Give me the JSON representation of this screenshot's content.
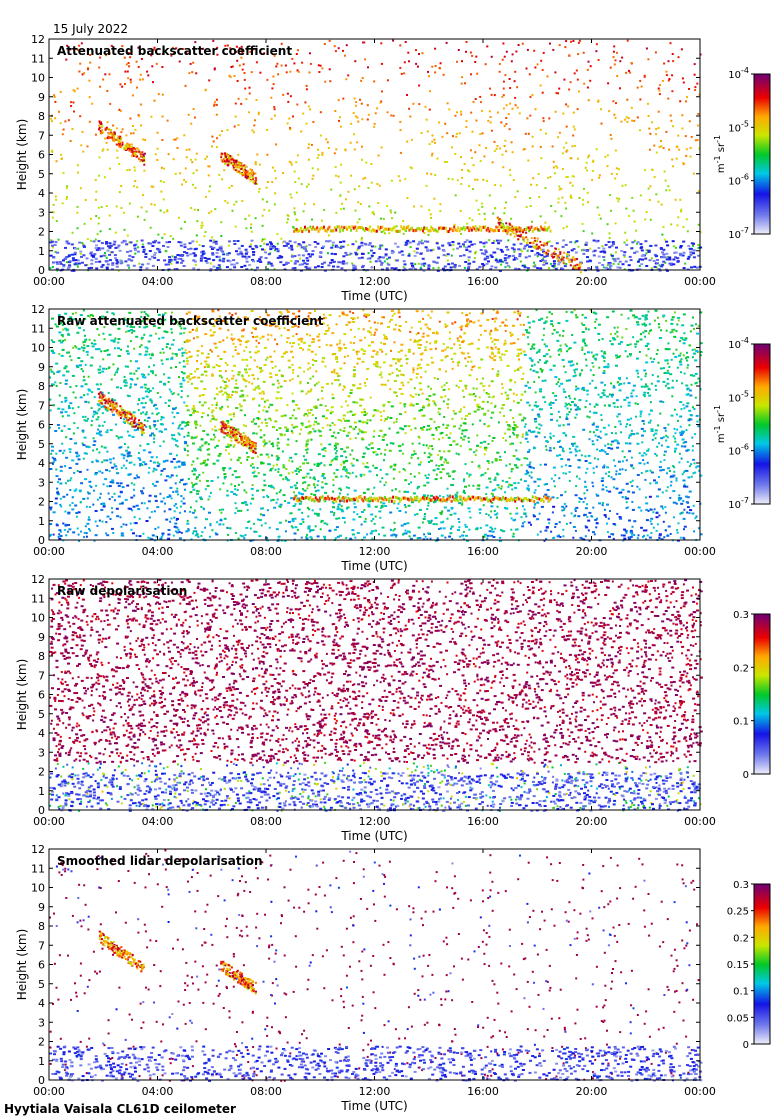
{
  "date_label": "15 July 2022",
  "footer_label": "Hyytiala Vaisala CL61D ceilometer",
  "chart_data": [
    {
      "type": "heatmap",
      "title": "Attenuated backscatter coefficient",
      "xlabel": "Time (UTC)",
      "ylabel": "Height (km)",
      "x_ticks": [
        "00:00",
        "04:00",
        "08:00",
        "12:00",
        "16:00",
        "20:00",
        "00:00"
      ],
      "xlim_hours": [
        0,
        24
      ],
      "y_ticks": [
        0,
        1,
        2,
        3,
        4,
        5,
        6,
        7,
        8,
        9,
        10,
        11,
        12
      ],
      "ylim": [
        0,
        12
      ],
      "colorbar": {
        "scale": "log",
        "range": [
          1e-07,
          0.0001
        ],
        "ticks": [
          "10^-7",
          "10^-6",
          "10^-5",
          "10^-4"
        ],
        "unit": "m^-1 sr^-1"
      },
      "colormap": "rainbow",
      "noise_level": 0.55,
      "features": [
        {
          "kind": "boundary_layer",
          "height_km": [
            0,
            1.6
          ]
        },
        {
          "kind": "cloud_base",
          "from_h": 9.0,
          "to_h": 18.5,
          "height_km": 2.2
        },
        {
          "kind": "cloud",
          "from_h": 1.8,
          "to_h": 3.5,
          "height_km": [
            5.8,
            7.5
          ]
        },
        {
          "kind": "cloud",
          "from_h": 6.3,
          "to_h": 7.6,
          "height_km": [
            4.8,
            6.0
          ]
        },
        {
          "kind": "cloud",
          "from_h": 16.5,
          "to_h": 19.6,
          "height_km": [
            0.2,
            2.5
          ]
        }
      ]
    },
    {
      "type": "heatmap",
      "title": "Raw attenuated backscatter coefficient",
      "xlabel": "Time (UTC)",
      "ylabel": "Height (km)",
      "x_ticks": [
        "00:00",
        "04:00",
        "08:00",
        "12:00",
        "16:00",
        "20:00",
        "00:00"
      ],
      "xlim_hours": [
        0,
        24
      ],
      "y_ticks": [
        0,
        1,
        2,
        3,
        4,
        5,
        6,
        7,
        8,
        9,
        10,
        11,
        12
      ],
      "ylim": [
        0,
        12
      ],
      "colorbar": {
        "scale": "log",
        "range": [
          1e-07,
          0.0001
        ],
        "ticks": [
          "10^-7",
          "10^-6",
          "10^-5",
          "10^-4"
        ],
        "unit": "m^-1 sr^-1"
      },
      "colormap": "rainbow",
      "noise_level": 1.0,
      "features": [
        {
          "kind": "daytime_noise",
          "from_h": 5.0,
          "to_h": 17.5
        },
        {
          "kind": "cloud_base",
          "from_h": 9.0,
          "to_h": 18.5,
          "height_km": 2.2
        },
        {
          "kind": "cloud",
          "from_h": 1.8,
          "to_h": 3.5,
          "height_km": [
            5.8,
            7.5
          ]
        },
        {
          "kind": "cloud",
          "from_h": 6.3,
          "to_h": 7.6,
          "height_km": [
            4.8,
            6.0
          ]
        }
      ]
    },
    {
      "type": "heatmap",
      "title": "Raw depolarisation",
      "xlabel": "Time (UTC)",
      "ylabel": "Height (km)",
      "x_ticks": [
        "00:00",
        "04:00",
        "08:00",
        "12:00",
        "16:00",
        "20:00",
        "00:00"
      ],
      "xlim_hours": [
        0,
        24
      ],
      "y_ticks": [
        0,
        1,
        2,
        3,
        4,
        5,
        6,
        7,
        8,
        9,
        10,
        11,
        12
      ],
      "ylim": [
        0,
        12
      ],
      "colorbar": {
        "scale": "linear",
        "range": [
          0,
          0.3
        ],
        "ticks": [
          "0",
          "0.1",
          "0.2",
          "0.3"
        ],
        "unit": ""
      },
      "colormap": "rainbow",
      "noise_level": 1.0,
      "features": [
        {
          "kind": "saturated_noise",
          "height_km": [
            2.5,
            12
          ]
        },
        {
          "kind": "boundary_layer",
          "height_km": [
            0,
            2.0
          ]
        }
      ]
    },
    {
      "type": "heatmap",
      "title": "Smoothed lidar depolarisation",
      "xlabel": "Time (UTC)",
      "ylabel": "Height (km)",
      "x_ticks": [
        "00:00",
        "04:00",
        "08:00",
        "12:00",
        "16:00",
        "20:00",
        "00:00"
      ],
      "xlim_hours": [
        0,
        24
      ],
      "y_ticks": [
        0,
        1,
        2,
        3,
        4,
        5,
        6,
        7,
        8,
        9,
        10,
        11,
        12
      ],
      "ylim": [
        0,
        12
      ],
      "colorbar": {
        "scale": "linear",
        "range": [
          0,
          0.3
        ],
        "ticks": [
          "0",
          "0.05",
          "0.1",
          "0.15",
          "0.2",
          "0.25",
          "0.3"
        ],
        "unit": ""
      },
      "colormap": "rainbow",
      "noise_level": 0.3,
      "features": [
        {
          "kind": "boundary_layer",
          "height_km": [
            0,
            1.8
          ]
        },
        {
          "kind": "cloud",
          "from_h": 1.8,
          "to_h": 3.5,
          "height_km": [
            5.8,
            7.5
          ]
        },
        {
          "kind": "cloud",
          "from_h": 6.3,
          "to_h": 7.6,
          "height_km": [
            4.8,
            6.0
          ]
        }
      ]
    }
  ]
}
